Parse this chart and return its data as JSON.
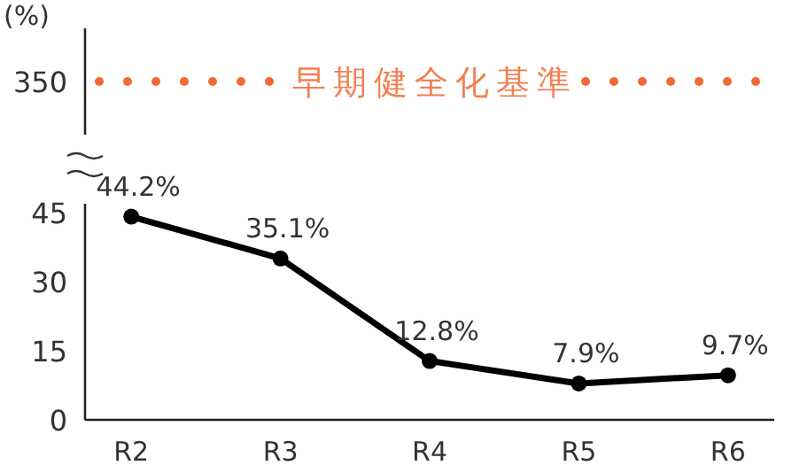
{
  "chart_data": [
    {
      "type": "other",
      "ylabel": "(%)",
      "annotations": [
        "350",
        "早期健全化基準"
      ],
      "color": "#f06a35"
    },
    {
      "type": "line",
      "categories": [
        "R2",
        "R3",
        "R4",
        "R5",
        "R6"
      ],
      "values": [
        44.2,
        35.1,
        12.8,
        7.9,
        9.7
      ],
      "color": "#000000",
      "value_labels": [
        "44.2%",
        "35.1%",
        "12.8%",
        "7.9%",
        "9.7%"
      ],
      "marker": "circle",
      "line_style": "solid",
      "ylim": [
        0,
        47
      ],
      "yticks": [
        0,
        15,
        30,
        45
      ],
      "grid": false
    }
  ]
}
